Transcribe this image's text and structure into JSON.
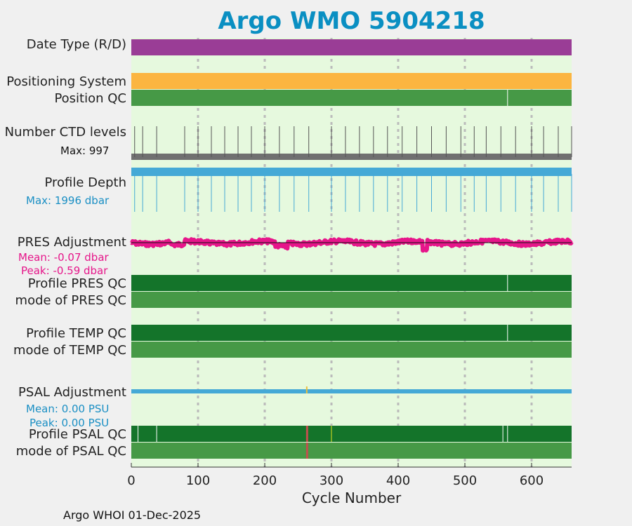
{
  "chart_data": {
    "type": "table",
    "title": "Argo WMO 5904218",
    "xlabel": "Cycle Number",
    "xlim": [
      0,
      660
    ],
    "xticks": [
      0,
      100,
      200,
      300,
      400,
      500,
      600
    ],
    "grid": true,
    "rows": [
      {
        "label": "Date Type (R/D)",
        "color": "#9a3d96"
      },
      {
        "label": "Positioning System",
        "color": "#fbb540"
      },
      {
        "label": "Position QC",
        "color": "#469946",
        "marks": [
          564
        ]
      },
      {
        "label": "Number CTD levels",
        "max_text": "Max: 997",
        "max_value": 997,
        "color": "#707070",
        "spike_cycles": [
          5,
          17,
          38,
          80,
          100,
          120,
          140,
          160,
          180,
          200,
          222,
          244,
          266,
          300,
          321,
          342,
          363,
          384,
          406,
          428,
          450,
          472,
          494,
          514,
          532,
          554,
          576,
          600,
          618,
          640,
          660
        ]
      },
      {
        "label": "Profile Depth",
        "max_text": "Max: 1996 dbar",
        "max_value": 1996,
        "color": "#45a9d6",
        "spike_cycles": [
          5,
          17,
          38,
          80,
          100,
          120,
          140,
          160,
          180,
          200,
          222,
          244,
          266,
          300,
          321,
          342,
          363,
          384,
          406,
          428,
          450,
          472,
          494,
          514,
          532,
          554,
          576,
          600,
          618,
          640,
          660
        ]
      },
      {
        "label": "PRES Adjustment",
        "mean_text": "Mean: -0.07 dbar",
        "peak_text": "Peak: -0.59 dbar",
        "color": "#e6168a",
        "mean": -0.07,
        "peak": -0.59,
        "peak_cycle": 440
      },
      {
        "label": "Profile PRES QC",
        "color": "#14742a",
        "marks": [
          564
        ]
      },
      {
        "label": "mode of PRES QC",
        "color": "#469946"
      },
      {
        "label": "Profile TEMP QC",
        "color": "#14742a",
        "marks": [
          564
        ]
      },
      {
        "label": "mode of TEMP QC",
        "color": "#469946"
      },
      {
        "label": "PSAL Adjustment",
        "mean_text": "Mean: 0.00 PSU",
        "peak_text": "Peak: 0.00 PSU",
        "color": "#45a9d6",
        "mean": 0.0,
        "peak": 0.0
      },
      {
        "label": "Profile PSAL QC",
        "color": "#14742a",
        "marks": [
          10,
          38,
          300,
          557,
          564
        ],
        "flag_cycles": [
          263
        ]
      },
      {
        "label": "mode of PSAL QC",
        "color": "#469946",
        "flag_cycles": [
          263
        ]
      }
    ],
    "colors": {
      "background": "#e6f9de",
      "mean_line": "#111111",
      "flag": "#c0504d",
      "mark": "#ffffff"
    }
  },
  "footer": "Argo WHOI 01-Dec-2025"
}
